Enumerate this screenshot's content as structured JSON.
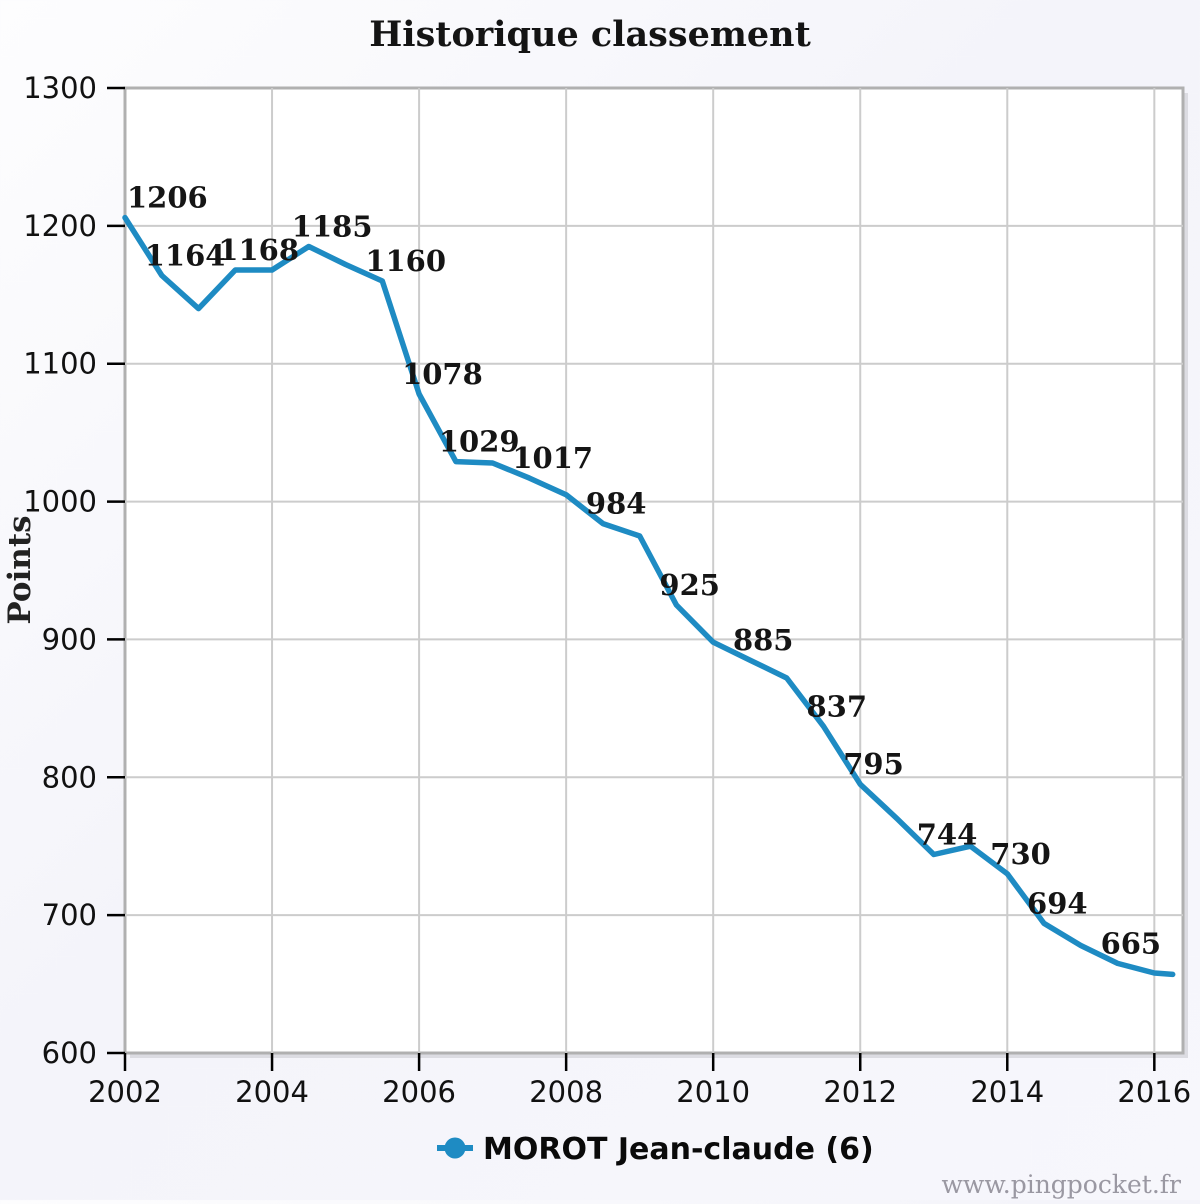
{
  "title": "Historique classement",
  "watermark": "www.pingpocket.fr",
  "legend": {
    "label": "MOROT Jean-claude (6)"
  },
  "colors": {
    "line": "#1e8bc3",
    "grid": "#cccccc",
    "plot_border": "#b0b0b0",
    "plot_shadow": "#dcdce2",
    "plot_background": "#ffffff",
    "tick": "#000000",
    "label_text": "#151515",
    "watermark_text": "#9a98a2"
  },
  "chart_data": {
    "type": "line",
    "title": "Historique classement",
    "xlabel": "",
    "ylabel": "Points",
    "xlim": [
      2002,
      2016.39
    ],
    "ylim": [
      600,
      1300
    ],
    "x_ticks": [
      2002,
      2004,
      2006,
      2008,
      2010,
      2012,
      2014,
      2016
    ],
    "y_ticks": [
      600,
      700,
      800,
      900,
      1000,
      1100,
      1200,
      1300
    ],
    "grid": true,
    "legend_position": "bottom",
    "markers_on_line": false,
    "series": [
      {
        "name": "MOROT Jean-claude (6)",
        "color": "#1e8bc3",
        "points": [
          {
            "x": 2002.0,
            "y": 1206,
            "label": "1206"
          },
          {
            "x": 2002.5,
            "y": 1164,
            "label": "1164"
          },
          {
            "x": 2003.0,
            "y": 1140
          },
          {
            "x": 2003.5,
            "y": 1168,
            "label": "1168"
          },
          {
            "x": 2004.0,
            "y": 1168
          },
          {
            "x": 2004.5,
            "y": 1185,
            "label": "1185"
          },
          {
            "x": 2005.0,
            "y": 1172
          },
          {
            "x": 2005.5,
            "y": 1160,
            "label": "1160"
          },
          {
            "x": 2006.0,
            "y": 1078,
            "label": "1078"
          },
          {
            "x": 2006.5,
            "y": 1029,
            "label": "1029"
          },
          {
            "x": 2007.0,
            "y": 1028
          },
          {
            "x": 2007.5,
            "y": 1017,
            "label": "1017"
          },
          {
            "x": 2008.0,
            "y": 1005
          },
          {
            "x": 2008.5,
            "y": 984,
            "label": "984"
          },
          {
            "x": 2009.0,
            "y": 975
          },
          {
            "x": 2009.5,
            "y": 925,
            "label": "925"
          },
          {
            "x": 2010.0,
            "y": 898
          },
          {
            "x": 2010.5,
            "y": 885,
            "label": "885"
          },
          {
            "x": 2011.0,
            "y": 872
          },
          {
            "x": 2011.5,
            "y": 837,
            "label": "837"
          },
          {
            "x": 2012.0,
            "y": 795,
            "label": "795"
          },
          {
            "x": 2012.5,
            "y": 770
          },
          {
            "x": 2013.0,
            "y": 744,
            "label": "744"
          },
          {
            "x": 2013.5,
            "y": 750
          },
          {
            "x": 2014.0,
            "y": 730,
            "label": "730"
          },
          {
            "x": 2014.5,
            "y": 694,
            "label": "694"
          },
          {
            "x": 2015.0,
            "y": 678
          },
          {
            "x": 2015.5,
            "y": 665,
            "label": "665"
          },
          {
            "x": 2016.0,
            "y": 658
          },
          {
            "x": 2016.25,
            "y": 657
          }
        ]
      }
    ]
  }
}
